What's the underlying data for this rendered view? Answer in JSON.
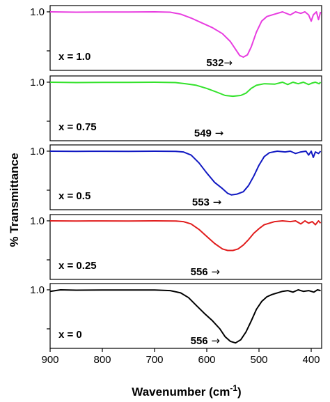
{
  "chart_data": {
    "type": "line",
    "ylabel": "% Transmittance",
    "xlabel_main": "Wavenumber (cm",
    "xlabel_sup": "-1",
    "xlabel_close": ")",
    "xlim": [
      900,
      380
    ],
    "x_ticks": [
      900,
      800,
      700,
      600,
      500,
      400
    ],
    "x_tick_labels": [
      "900",
      "800",
      "700",
      "600",
      "500",
      "400"
    ],
    "y_tick_label": "1.0",
    "arrow": "→",
    "panels": [
      {
        "label": "x = 1.0",
        "color": "#e83de0",
        "peak_label": "532",
        "peak_wavenumber": 532,
        "ylim": [
          0.25,
          1.08
        ],
        "points": [
          [
            900,
            1.0
          ],
          [
            850,
            0.995
          ],
          [
            800,
            0.998
          ],
          [
            750,
            0.998
          ],
          [
            700,
            1.0
          ],
          [
            670,
            0.995
          ],
          [
            650,
            0.97
          ],
          [
            630,
            0.92
          ],
          [
            610,
            0.86
          ],
          [
            590,
            0.8
          ],
          [
            570,
            0.72
          ],
          [
            555,
            0.62
          ],
          [
            545,
            0.52
          ],
          [
            537,
            0.44
          ],
          [
            530,
            0.42
          ],
          [
            522,
            0.45
          ],
          [
            515,
            0.55
          ],
          [
            505,
            0.74
          ],
          [
            495,
            0.88
          ],
          [
            485,
            0.94
          ],
          [
            470,
            0.97
          ],
          [
            455,
            1.0
          ],
          [
            440,
            0.96
          ],
          [
            430,
            1.0
          ],
          [
            420,
            0.98
          ],
          [
            412,
            1.0
          ],
          [
            405,
            0.96
          ],
          [
            400,
            0.88
          ],
          [
            396,
            0.96
          ],
          [
            390,
            1.0
          ],
          [
            386,
            0.9
          ],
          [
            382,
            1.0
          ]
        ]
      },
      {
        "label": "x = 0.75",
        "color": "#33e22b",
        "peak_label": "549",
        "peak_wavenumber": 549,
        "ylim": [
          0.25,
          1.08
        ],
        "points": [
          [
            900,
            1.0
          ],
          [
            850,
            0.995
          ],
          [
            800,
            0.998
          ],
          [
            750,
            0.998
          ],
          [
            700,
            1.0
          ],
          [
            660,
            0.995
          ],
          [
            640,
            0.98
          ],
          [
            620,
            0.96
          ],
          [
            600,
            0.92
          ],
          [
            580,
            0.87
          ],
          [
            565,
            0.83
          ],
          [
            550,
            0.82
          ],
          [
            535,
            0.83
          ],
          [
            525,
            0.86
          ],
          [
            515,
            0.92
          ],
          [
            505,
            0.96
          ],
          [
            490,
            0.98
          ],
          [
            470,
            0.975
          ],
          [
            455,
            1.0
          ],
          [
            445,
            0.97
          ],
          [
            435,
            1.0
          ],
          [
            425,
            0.98
          ],
          [
            415,
            1.0
          ],
          [
            405,
            0.97
          ],
          [
            398,
            0.99
          ],
          [
            392,
            1.0
          ],
          [
            385,
            0.98
          ],
          [
            382,
            1.0
          ]
        ]
      },
      {
        "label": "x = 0.5",
        "color": "#1018c2",
        "peak_label": "553",
        "peak_wavenumber": 553,
        "ylim": [
          0.25,
          1.08
        ],
        "points": [
          [
            900,
            1.0
          ],
          [
            850,
            0.998
          ],
          [
            800,
            0.999
          ],
          [
            750,
            0.998
          ],
          [
            700,
            1.0
          ],
          [
            660,
            0.998
          ],
          [
            645,
            0.99
          ],
          [
            630,
            0.95
          ],
          [
            615,
            0.85
          ],
          [
            600,
            0.72
          ],
          [
            585,
            0.6
          ],
          [
            570,
            0.52
          ],
          [
            560,
            0.46
          ],
          [
            553,
            0.44
          ],
          [
            542,
            0.45
          ],
          [
            530,
            0.48
          ],
          [
            520,
            0.56
          ],
          [
            510,
            0.68
          ],
          [
            500,
            0.82
          ],
          [
            490,
            0.93
          ],
          [
            480,
            0.98
          ],
          [
            465,
            1.0
          ],
          [
            450,
            0.99
          ],
          [
            440,
            1.0
          ],
          [
            430,
            0.97
          ],
          [
            420,
            0.99
          ],
          [
            410,
            1.0
          ],
          [
            405,
            0.95
          ],
          [
            400,
            1.0
          ],
          [
            396,
            0.92
          ],
          [
            392,
            0.99
          ],
          [
            386,
            0.97
          ],
          [
            382,
            1.0
          ]
        ]
      },
      {
        "label": "x = 0.25",
        "color": "#e11d1d",
        "peak_label": "556",
        "peak_wavenumber": 556,
        "ylim": [
          0.25,
          1.08
        ],
        "points": [
          [
            900,
            1.0
          ],
          [
            850,
            0.998
          ],
          [
            800,
            0.999
          ],
          [
            750,
            0.998
          ],
          [
            700,
            1.0
          ],
          [
            660,
            0.998
          ],
          [
            645,
            0.99
          ],
          [
            630,
            0.96
          ],
          [
            615,
            0.89
          ],
          [
            600,
            0.8
          ],
          [
            585,
            0.71
          ],
          [
            570,
            0.64
          ],
          [
            560,
            0.62
          ],
          [
            550,
            0.62
          ],
          [
            540,
            0.64
          ],
          [
            530,
            0.69
          ],
          [
            520,
            0.76
          ],
          [
            510,
            0.84
          ],
          [
            500,
            0.9
          ],
          [
            490,
            0.95
          ],
          [
            480,
            0.97
          ],
          [
            470,
            0.99
          ],
          [
            455,
            1.0
          ],
          [
            440,
            0.99
          ],
          [
            430,
            1.0
          ],
          [
            420,
            0.96
          ],
          [
            412,
            1.0
          ],
          [
            405,
            0.97
          ],
          [
            398,
            0.99
          ],
          [
            392,
            0.95
          ],
          [
            386,
            1.0
          ],
          [
            382,
            0.97
          ]
        ]
      },
      {
        "label": "x = 0",
        "color": "#000000",
        "peak_label": "556",
        "peak_wavenumber": 556,
        "ylim": [
          0.25,
          1.08
        ],
        "points": [
          [
            900,
            0.98
          ],
          [
            880,
            1.0
          ],
          [
            850,
            0.995
          ],
          [
            800,
            0.998
          ],
          [
            750,
            0.998
          ],
          [
            700,
            0.998
          ],
          [
            670,
            0.99
          ],
          [
            650,
            0.96
          ],
          [
            635,
            0.9
          ],
          [
            620,
            0.8
          ],
          [
            605,
            0.7
          ],
          [
            590,
            0.61
          ],
          [
            575,
            0.5
          ],
          [
            565,
            0.4
          ],
          [
            555,
            0.34
          ],
          [
            545,
            0.32
          ],
          [
            535,
            0.36
          ],
          [
            525,
            0.46
          ],
          [
            515,
            0.6
          ],
          [
            505,
            0.75
          ],
          [
            495,
            0.85
          ],
          [
            485,
            0.91
          ],
          [
            475,
            0.94
          ],
          [
            465,
            0.96
          ],
          [
            455,
            0.98
          ],
          [
            445,
            0.99
          ],
          [
            435,
            0.97
          ],
          [
            425,
            1.0
          ],
          [
            415,
            0.98
          ],
          [
            405,
            0.99
          ],
          [
            395,
            0.97
          ],
          [
            388,
            1.0
          ],
          [
            382,
            0.99
          ]
        ]
      }
    ]
  }
}
